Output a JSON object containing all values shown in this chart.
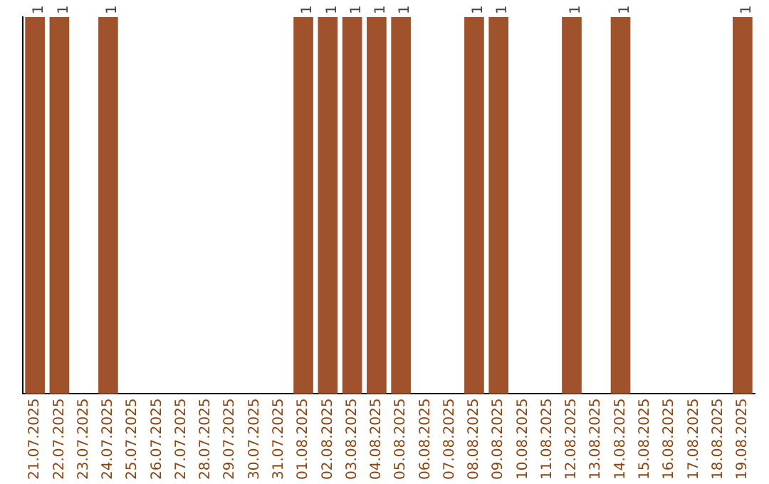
{
  "chart_data": {
    "type": "bar",
    "ylim": [
      0,
      1
    ],
    "tick_labels": "x",
    "categories": [
      "21.07.2025",
      "22.07.2025",
      "23.07.2025",
      "24.07.2025",
      "25.07.2025",
      "26.07.2025",
      "27.07.2025",
      "28.07.2025",
      "29.07.2025",
      "30.07.2025",
      "31.07.2025",
      "01.08.2025",
      "02.08.2025",
      "03.08.2025",
      "04.08.2025",
      "05.08.2025",
      "06.08.2025",
      "07.08.2025",
      "08.08.2025",
      "09.08.2025",
      "10.08.2025",
      "11.08.2025",
      "12.08.2025",
      "13.08.2025",
      "14.08.2025",
      "15.08.2025",
      "16.08.2025",
      "17.08.2025",
      "18.08.2025",
      "19.08.2025"
    ],
    "values": [
      1,
      1,
      0,
      1,
      0,
      0,
      0,
      0,
      0,
      0,
      0,
      1,
      1,
      1,
      1,
      1,
      0,
      0,
      1,
      1,
      0,
      0,
      1,
      0,
      1,
      0,
      0,
      0,
      0,
      1
    ],
    "value_labels": [
      "1",
      "1",
      null,
      "1",
      null,
      null,
      null,
      null,
      null,
      null,
      null,
      "1",
      "1",
      "1",
      "1",
      "1",
      null,
      null,
      "1",
      "1",
      null,
      null,
      "1",
      null,
      "1",
      null,
      null,
      null,
      null,
      "1"
    ],
    "color": "#a0522d",
    "grid": false,
    "legend": false
  }
}
